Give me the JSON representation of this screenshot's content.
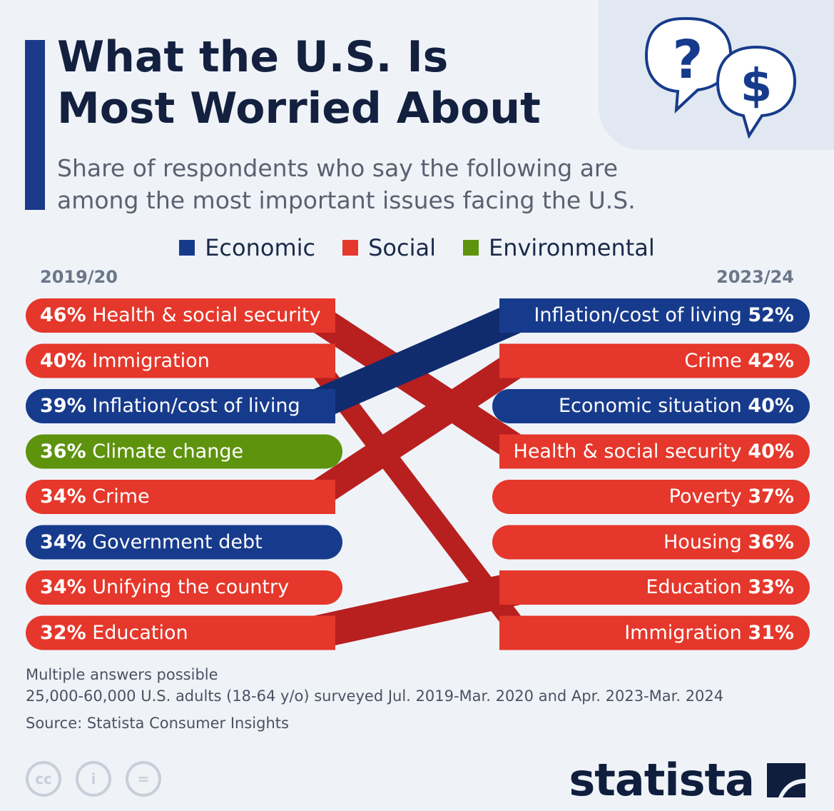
{
  "title_lines": [
    "What the U.S. Is",
    "Most Worried About"
  ],
  "subtitle_lines": [
    "Share of respondents who say the following are",
    "among the most important issues facing the U.S."
  ],
  "legend": [
    {
      "label": "Economic",
      "color": "#173b8c"
    },
    {
      "label": "Social",
      "color": "#e5372b"
    },
    {
      "label": "Environmental",
      "color": "#5e930e"
    }
  ],
  "header_icons": [
    "question-mark-icon",
    "dollar-icon"
  ],
  "chart_data": {
    "type": "bump",
    "periods": [
      "2019/20",
      "2023/24"
    ],
    "left": [
      {
        "pct": "46%",
        "label": "Health & social security",
        "category": "Social",
        "value": 46
      },
      {
        "pct": "40%",
        "label": "Immigration",
        "category": "Social",
        "value": 40
      },
      {
        "pct": "39%",
        "label": "Inflation/cost of living",
        "category": "Economic",
        "value": 39
      },
      {
        "pct": "36%",
        "label": "Climate change",
        "category": "Environmental",
        "value": 36
      },
      {
        "pct": "34%",
        "label": "Crime",
        "category": "Social",
        "value": 34
      },
      {
        "pct": "34%",
        "label": "Government debt",
        "category": "Economic",
        "value": 34
      },
      {
        "pct": "34%",
        "label": "Unifying the country",
        "category": "Social",
        "value": 34
      },
      {
        "pct": "32%",
        "label": "Education",
        "category": "Social",
        "value": 32
      }
    ],
    "right": [
      {
        "pct": "52%",
        "label": "Inflation/cost of living",
        "category": "Economic",
        "value": 52
      },
      {
        "pct": "42%",
        "label": "Crime",
        "category": "Social",
        "value": 42
      },
      {
        "pct": "40%",
        "label": "Economic situation",
        "category": "Economic",
        "value": 40
      },
      {
        "pct": "40%",
        "label": "Health & social security",
        "category": "Social",
        "value": 40
      },
      {
        "pct": "37%",
        "label": "Poverty",
        "category": "Social",
        "value": 37
      },
      {
        "pct": "36%",
        "label": "Housing",
        "category": "Social",
        "value": 36
      },
      {
        "pct": "33%",
        "label": "Education",
        "category": "Social",
        "value": 33
      },
      {
        "pct": "31%",
        "label": "Immigration",
        "category": "Social",
        "value": 31
      }
    ],
    "links": [
      [
        0,
        3
      ],
      [
        1,
        7
      ],
      [
        2,
        0
      ],
      [
        4,
        1
      ],
      [
        7,
        6
      ]
    ]
  },
  "notes": [
    "Multiple answers possible",
    "25,000-60,000 U.S. adults (18-64 y/o) surveyed Jul. 2019-Mar. 2020 and Apr. 2023-Mar. 2024"
  ],
  "source": "Source: Statista Consumer Insights",
  "license_icons": [
    {
      "name": "cc-icon",
      "text": "cc"
    },
    {
      "name": "attribution-icon",
      "text": "i"
    },
    {
      "name": "no-derivatives-icon",
      "text": "="
    }
  ],
  "brand": "statista"
}
